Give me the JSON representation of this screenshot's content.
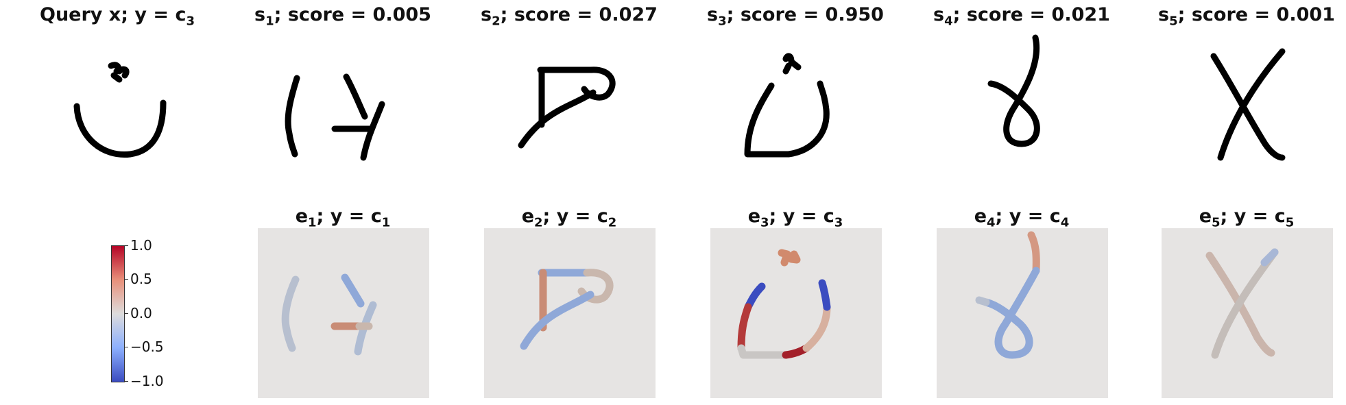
{
  "query": {
    "title": {
      "lead": "Query x; y = c",
      "sub": "3",
      "tail": ""
    }
  },
  "support": [
    {
      "title": {
        "lead": "s",
        "sub": "1",
        "tail": "; score = 0.005"
      },
      "score": 0.005
    },
    {
      "title": {
        "lead": "s",
        "sub": "2",
        "tail": "; score = 0.027"
      },
      "score": 0.027
    },
    {
      "title": {
        "lead": "s",
        "sub": "3",
        "tail": "; score = 0.950"
      },
      "score": 0.95
    },
    {
      "title": {
        "lead": "s",
        "sub": "4",
        "tail": "; score = 0.021"
      },
      "score": 0.021
    },
    {
      "title": {
        "lead": "s",
        "sub": "5",
        "tail": "; score = 0.001"
      },
      "score": 0.001
    }
  ],
  "explanations": [
    {
      "title": {
        "lead": "e",
        "sub": "1",
        "lead2": "; y = c",
        "sub2": "1"
      }
    },
    {
      "title": {
        "lead": "e",
        "sub": "2",
        "lead2": "; y = c",
        "sub2": "2"
      }
    },
    {
      "title": {
        "lead": "e",
        "sub": "3",
        "lead2": "; y = c",
        "sub2": "3"
      }
    },
    {
      "title": {
        "lead": "e",
        "sub": "4",
        "lead2": "; y = c",
        "sub2": "4"
      }
    },
    {
      "title": {
        "lead": "e",
        "sub": "5",
        "lead2": "; y = c",
        "sub2": "5"
      }
    }
  ],
  "colorbar": {
    "colormap": "coolwarm",
    "range": [
      -1.0,
      1.0
    ],
    "ticks": [
      "1.0",
      "0.5",
      "0.0",
      "−0.5",
      "−1.0"
    ]
  },
  "colors": {
    "neutral": "#c9c6c4",
    "warm": "#c98c76",
    "cool": "#8fa8d8",
    "strong_warm": "#a3202a",
    "strong_cool": "#3b4cc0",
    "panel_bg": "#e6e4e3"
  }
}
